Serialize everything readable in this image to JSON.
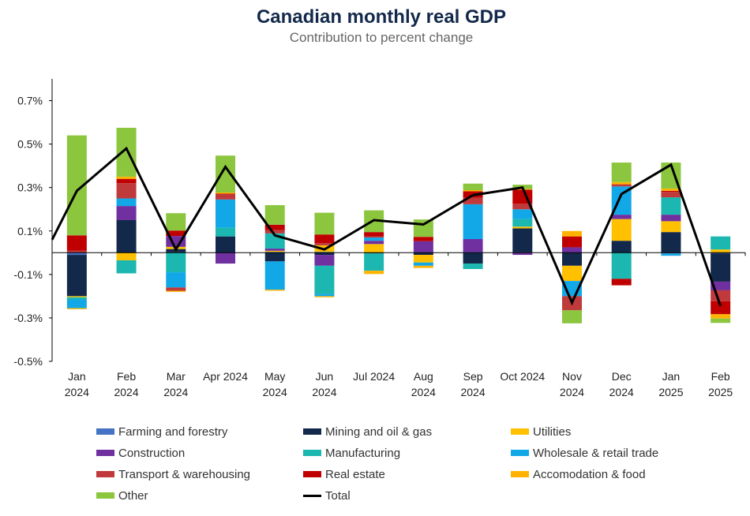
{
  "title": "Canadian monthly real GDP",
  "subtitle": "Contribution to percent change",
  "chart_data": {
    "type": "bar",
    "stacked": true,
    "title": "Canadian monthly real GDP",
    "subtitle": "Contribution to percent change",
    "xlabel": "",
    "ylabel": "",
    "ylim": [
      -0.5,
      0.8
    ],
    "yticks": [
      -0.5,
      -0.3,
      -0.1,
      0.1,
      0.3,
      0.5,
      0.7
    ],
    "ytick_labels": [
      "-0.5%",
      "-0.3%",
      "-0.1%",
      "0.1%",
      "0.3%",
      "0.5%",
      "0.7%"
    ],
    "grid": false,
    "legend": "bottom",
    "categories": [
      [
        "Jan",
        "2024"
      ],
      [
        "Feb",
        "2024"
      ],
      [
        "Mar",
        "2024"
      ],
      [
        "Apr 2024"
      ],
      [
        "May",
        "2024"
      ],
      [
        "Jun",
        "2024"
      ],
      [
        "Jul 2024"
      ],
      [
        "Aug",
        "2024"
      ],
      [
        "Sep",
        "2024"
      ],
      [
        "Oct 2024"
      ],
      [
        "Nov",
        "2024"
      ],
      [
        "Dec",
        "2024"
      ],
      [
        "Jan",
        "2025"
      ],
      [
        "Feb",
        "2025"
      ]
    ],
    "series": [
      {
        "name": "Farming and forestry",
        "color": "#4472c4",
        "values": [
          -0.01,
          0,
          0.002,
          0,
          0.004,
          0.004,
          0,
          0.003,
          0.003,
          0.002,
          0,
          0,
          -0.004,
          -0.003
        ]
      },
      {
        "name": "Mining and oil & gas",
        "color": "#13294b",
        "values": [
          -0.19,
          0.15,
          0.015,
          0.075,
          -0.04,
          -0.01,
          -0.003,
          -0.01,
          -0.05,
          0.11,
          -0.06,
          0.055,
          0.095,
          -0.13
        ]
      },
      {
        "name": "Utilities",
        "color": "#ffc000",
        "values": [
          -0.005,
          -0.035,
          0.01,
          0,
          0.005,
          0.03,
          0.04,
          -0.035,
          0,
          0.008,
          -0.07,
          0.1,
          0.05,
          0.015
        ]
      },
      {
        "name": "Construction",
        "color": "#7030a0",
        "values": [
          0,
          0.065,
          0.05,
          -0.05,
          0.01,
          -0.05,
          0.015,
          0.05,
          0.06,
          -0.01,
          0.025,
          0.02,
          0.03,
          -0.04
        ]
      },
      {
        "name": "Manufacturing",
        "color": "#1bb7b0",
        "values": [
          -0.01,
          -0.06,
          -0.09,
          0.04,
          0.07,
          -0.13,
          -0.08,
          0,
          -0.025,
          0.035,
          0,
          -0.12,
          0.08,
          0.06
        ]
      },
      {
        "name": "Wholesale & retail trade",
        "color": "#12a8e8",
        "values": [
          -0.04,
          0.035,
          -0.07,
          0.13,
          -0.13,
          -0.01,
          0.015,
          -0.015,
          0.16,
          0.045,
          -0.07,
          0.13,
          -0.01,
          0
        ]
      },
      {
        "name": "Transport & warehousing",
        "color": "#c0393b",
        "values": [
          0.01,
          0.07,
          -0.015,
          0.025,
          0.015,
          0.01,
          0.005,
          0,
          0.03,
          0.025,
          -0.065,
          0.01,
          0.025,
          -0.05
        ]
      },
      {
        "name": "Real estate",
        "color": "#c00000",
        "values": [
          0.07,
          0.02,
          0.025,
          0.002,
          0.025,
          0.04,
          0.02,
          0.02,
          0.03,
          0.065,
          0.05,
          -0.03,
          0.005,
          -0.06
        ]
      },
      {
        "name": "Accomodation & food",
        "color": "#ffb300",
        "values": [
          -0.005,
          0.01,
          -0.005,
          0.005,
          -0.005,
          -0.005,
          -0.015,
          -0.01,
          0.005,
          0.003,
          0.025,
          0.01,
          0.01,
          -0.02
        ]
      },
      {
        "name": "Other",
        "color": "#8cc63e",
        "values": [
          0.46,
          0.225,
          0.08,
          0.17,
          0.09,
          0.1,
          0.1,
          0.08,
          0.03,
          0.02,
          -0.06,
          0.09,
          0.12,
          -0.02
        ]
      }
    ],
    "total": {
      "name": "Total",
      "color": "#000000",
      "values": [
        0.285,
        0.48,
        0.015,
        0.395,
        0.08,
        0.015,
        0.15,
        0.13,
        0.265,
        0.3,
        -0.23,
        0.27,
        0.405,
        -0.245
      ]
    },
    "total_start": 0.06
  },
  "legend": [
    {
      "label": "Farming and forestry",
      "color": "#4472c4",
      "kind": "box"
    },
    {
      "label": "Mining and oil & gas",
      "color": "#13294b",
      "kind": "box"
    },
    {
      "label": "Utilities",
      "color": "#ffc000",
      "kind": "box"
    },
    {
      "label": "Construction",
      "color": "#7030a0",
      "kind": "box"
    },
    {
      "label": "Manufacturing",
      "color": "#1bb7b0",
      "kind": "box"
    },
    {
      "label": "Wholesale & retail trade",
      "color": "#12a8e8",
      "kind": "box"
    },
    {
      "label": "Transport & warehousing",
      "color": "#c0393b",
      "kind": "box"
    },
    {
      "label": "Real estate",
      "color": "#c00000",
      "kind": "box"
    },
    {
      "label": "Accomodation & food",
      "color": "#ffb300",
      "kind": "box"
    },
    {
      "label": "Other",
      "color": "#8cc63e",
      "kind": "box"
    },
    {
      "label": "Total",
      "color": "#000000",
      "kind": "line"
    }
  ]
}
